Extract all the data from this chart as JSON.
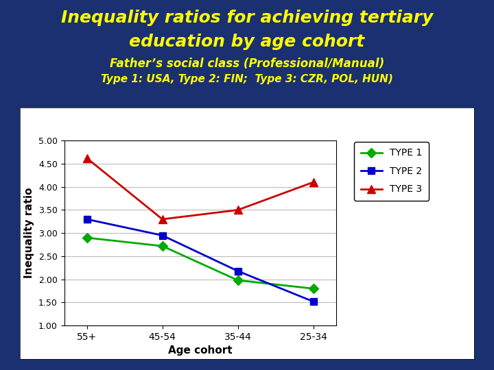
{
  "title_line1": "Inequality ratios for achieving tertiary",
  "title_line2": "education by age cohort",
  "subtitle1": "Father’s social class (Professional/Manual)",
  "subtitle2": "Type 1: USA, Type 2: FIN;  Type 3: CZR, POL, HUN)",
  "xlabel": "Age cohort",
  "ylabel": "Inequality ratio",
  "categories": [
    "55+",
    "45-54",
    "35-44",
    "25-34"
  ],
  "type1": [
    2.9,
    2.72,
    1.98,
    1.8
  ],
  "type2": [
    3.3,
    2.95,
    2.18,
    1.52
  ],
  "type3": [
    4.62,
    3.3,
    3.5,
    4.1
  ],
  "color_type1": "#00aa00",
  "color_type2": "#0000cc",
  "color_type3": "#cc0000",
  "ylim": [
    1.0,
    5.0
  ],
  "yticks": [
    1.0,
    1.5,
    2.0,
    2.5,
    3.0,
    3.5,
    4.0,
    4.5,
    5.0
  ],
  "background_outer": "#1a3070",
  "background_plot": "#ffffff",
  "title_color": "#ffff00",
  "subtitle_color": "#ffff00",
  "legend_labels": [
    "TYPE 1",
    "TYPE 2",
    "TYPE 3"
  ],
  "title_fontsize": 18,
  "subtitle1_fontsize": 12,
  "subtitle2_fontsize": 11
}
